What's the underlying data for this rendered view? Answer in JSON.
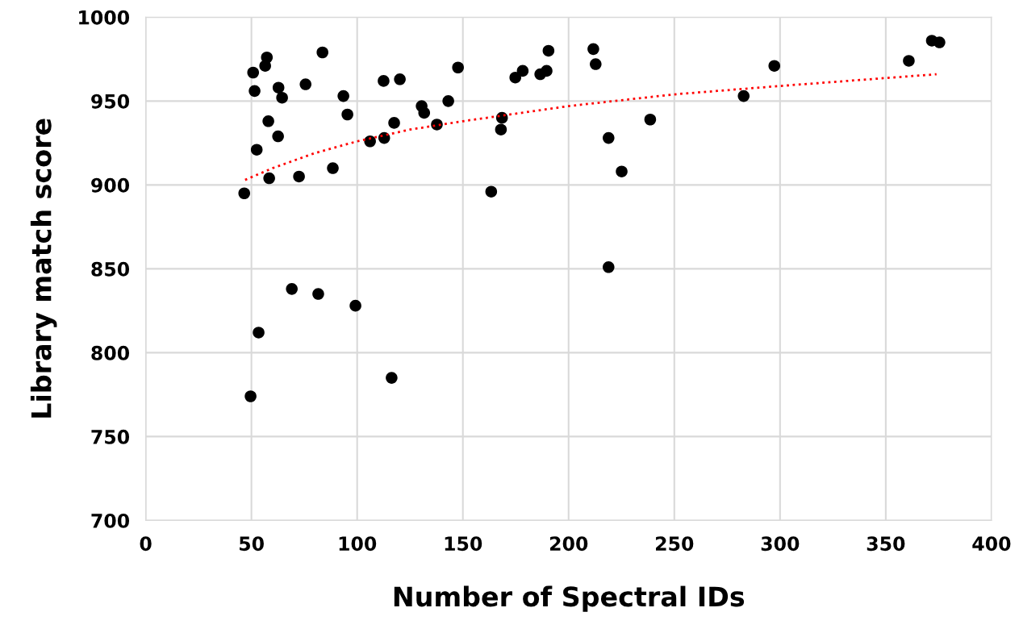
{
  "chart_data": {
    "type": "scatter",
    "xlabel": "Number of Spectral IDs",
    "ylabel": "Library match score",
    "xlim": [
      0,
      400
    ],
    "xticks": [
      0,
      50,
      100,
      150,
      200,
      250,
      300,
      350,
      400
    ],
    "ylim": [
      700,
      1000
    ],
    "yticks": [
      700,
      750,
      800,
      850,
      900,
      950,
      1000
    ],
    "grid": true,
    "legend": false,
    "series": [
      {
        "color": "#000000",
        "marker": "circle",
        "x": [
          46.6,
          49.6,
          50.8,
          51.5,
          52.5,
          53.4,
          56.5,
          57.3,
          58.0,
          58.4,
          62.6,
          62.8,
          64.5,
          69.1,
          72.5,
          75.6,
          81.6,
          83.6,
          88.5,
          93.5,
          95.4,
          99.2,
          106.1,
          112.5,
          112.8,
          116.3,
          117.5,
          120.2,
          130.5,
          131.7,
          137.7,
          143.1,
          147.7,
          163.4,
          168.0,
          168.5,
          174.8,
          178.3,
          186.6,
          189.6,
          190.5,
          211.7,
          212.8,
          218.9,
          218.9,
          225.1,
          238.6,
          282.8,
          297.3,
          360.9,
          371.8,
          375.4
        ],
        "values": [
          895,
          774,
          967,
          956,
          921,
          812,
          971,
          976,
          938,
          904,
          929,
          958,
          952,
          838,
          905,
          960,
          835,
          979,
          910,
          953,
          942,
          828,
          926,
          962,
          928,
          785,
          937,
          963,
          947,
          943,
          936,
          950,
          970,
          896,
          933,
          940,
          964,
          968,
          966,
          968,
          980,
          981,
          972,
          928,
          851,
          908,
          939,
          953,
          971,
          974,
          986,
          985
        ]
      },
      {
        "type": "line",
        "color": "#ff0000",
        "line_style": "dotted",
        "marker": "none",
        "x": [
          47,
          60,
          80,
          100,
          125,
          150,
          200,
          250,
          300,
          374
        ],
        "values": [
          903,
          910,
          919,
          926,
          933,
          938,
          947,
          954,
          959,
          966
        ]
      }
    ]
  }
}
